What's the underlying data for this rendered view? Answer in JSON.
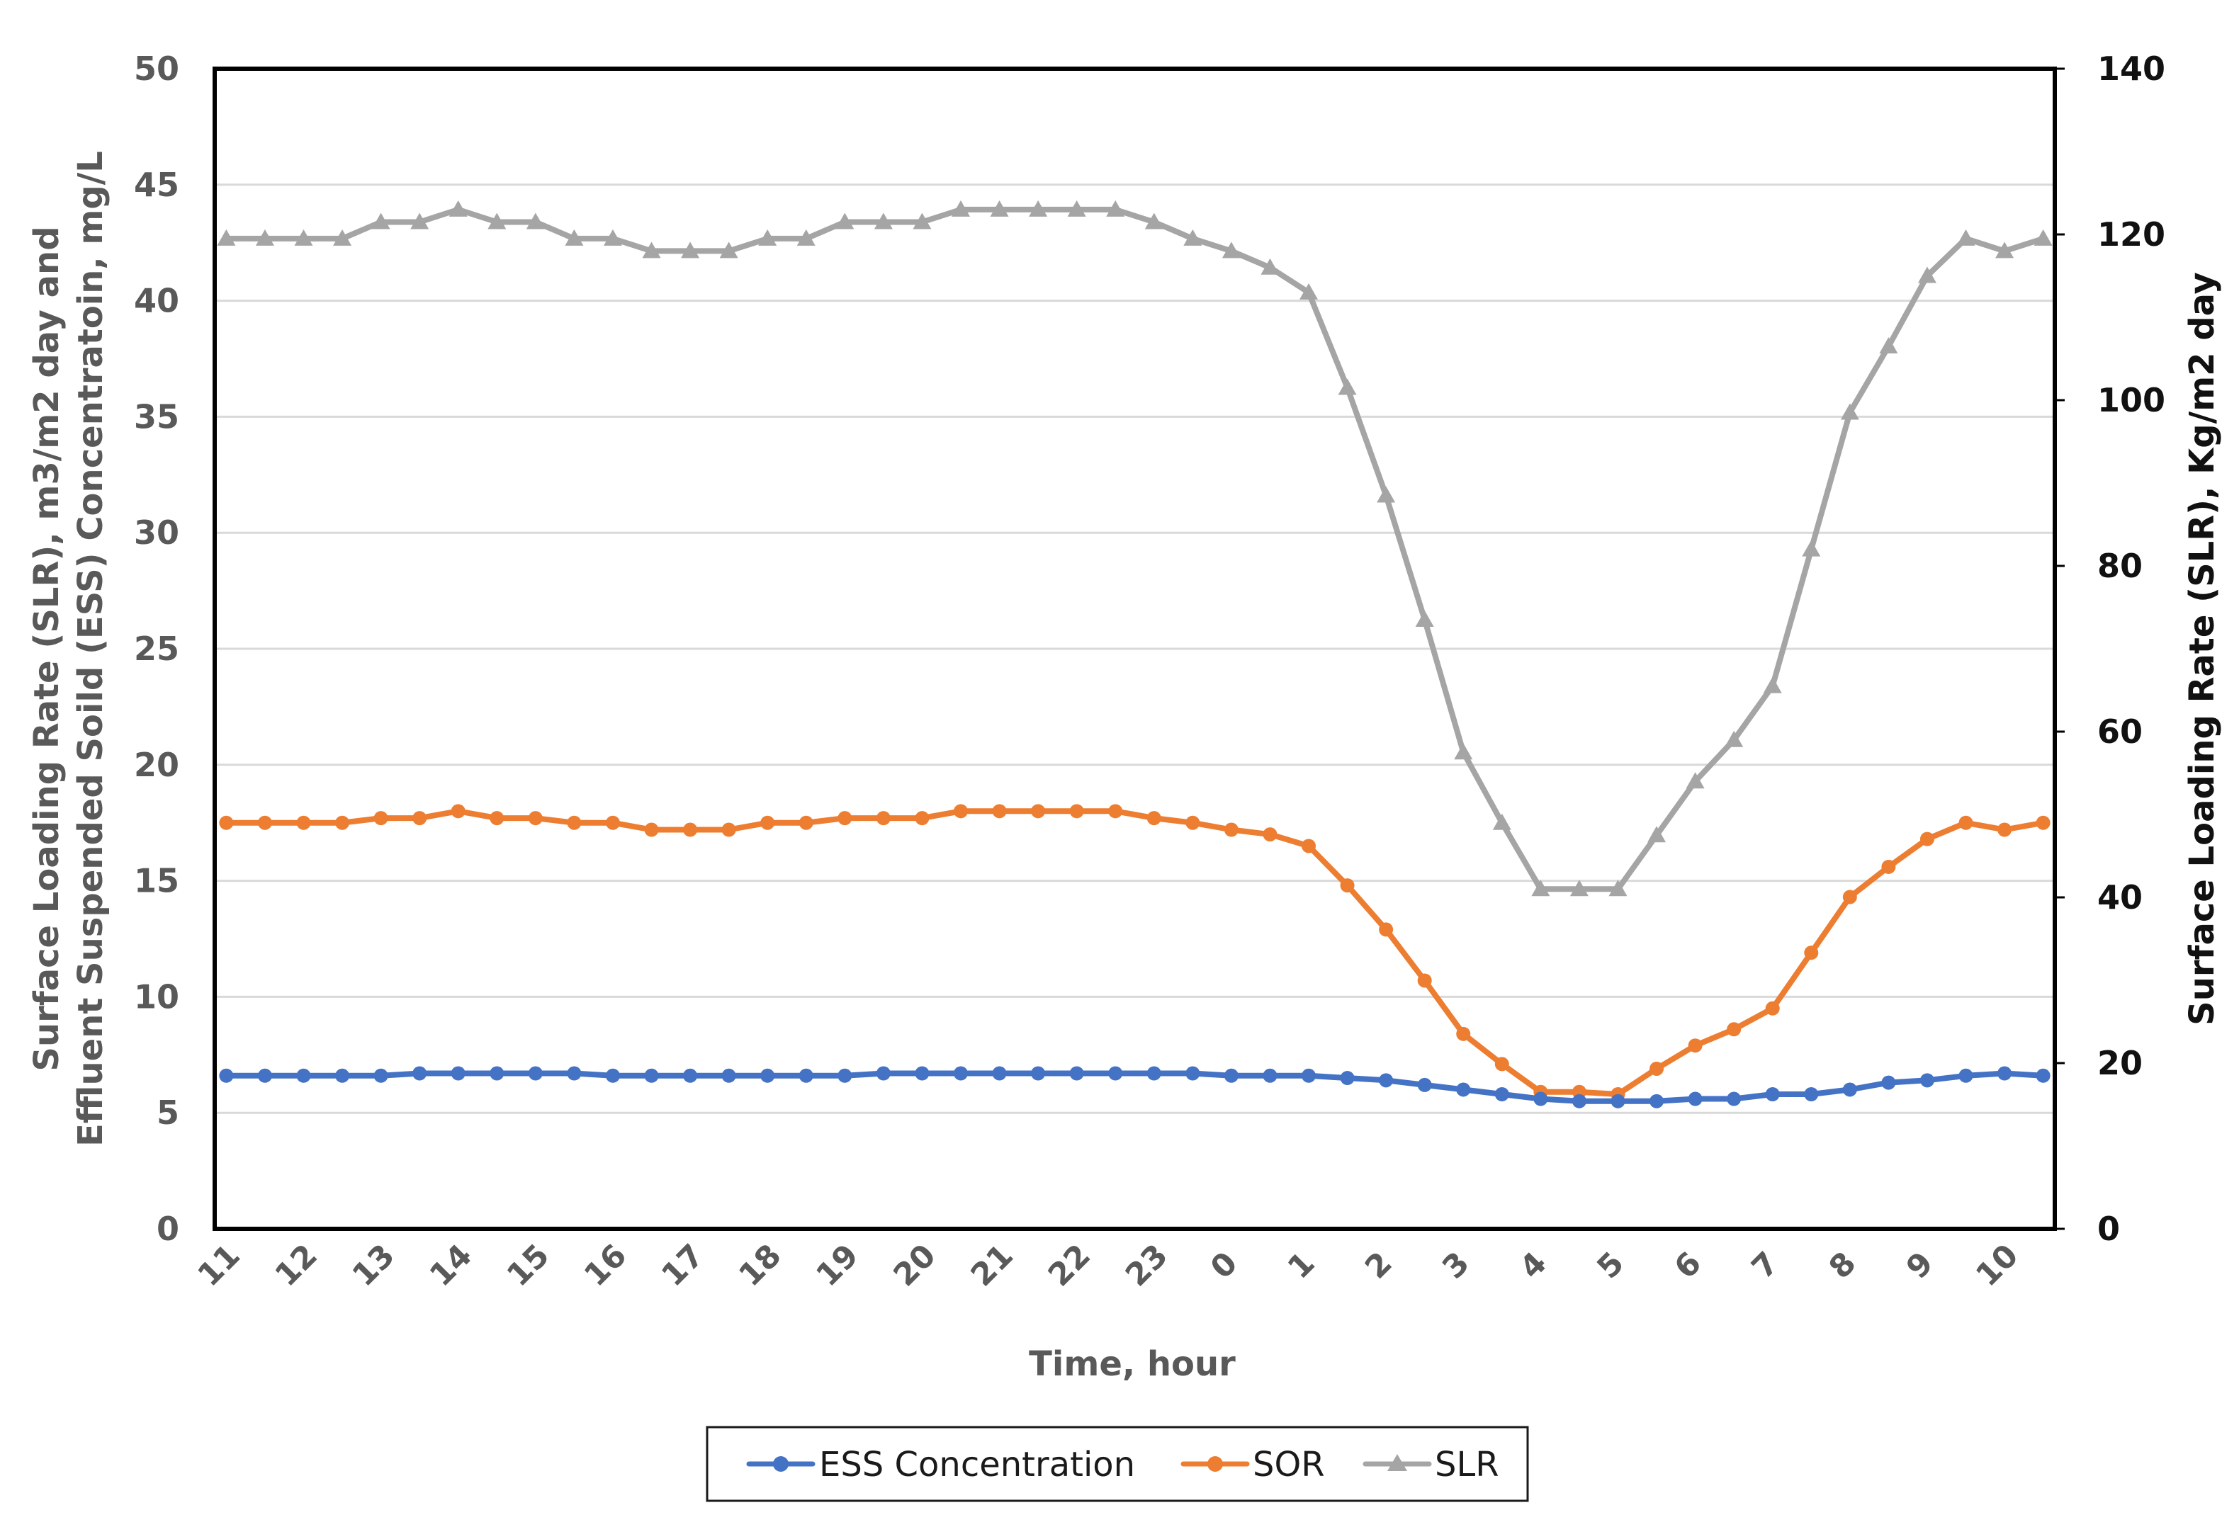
{
  "chart_data": {
    "type": "line",
    "x_tick_labels": [
      "11",
      "12",
      "13",
      "14",
      "15",
      "16",
      "17",
      "18",
      "19",
      "20",
      "21",
      "22",
      "23",
      "0",
      "1",
      "2",
      "3",
      "4",
      "5",
      "6",
      "7",
      "8",
      "9",
      "10"
    ],
    "xlabel": "Time, hour",
    "ylabel_left_line1": "Surface Loading Rate (SLR), m3/m2 day and",
    "ylabel_left_line2": "Effluent Suspended Soild (ESS) Concentratoin, mg/L",
    "ylabel_right": "Surface Loading Rate (SLR), Kg/m2 day",
    "ylim_left": [
      0,
      50
    ],
    "ylim_right": [
      0,
      140
    ],
    "yticks_left": [
      "0",
      "5",
      "10",
      "15",
      "20",
      "25",
      "30",
      "35",
      "40",
      "45",
      "50"
    ],
    "yticks_right": [
      "0",
      "20",
      "40",
      "60",
      "80",
      "100",
      "120",
      "140"
    ],
    "x_range": [
      10.85,
      34.65
    ],
    "x": [
      11,
      11.5,
      12,
      12.5,
      13,
      13.5,
      14,
      14.5,
      15,
      15.5,
      16,
      16.5,
      17,
      17.5,
      18,
      18.5,
      19,
      19.5,
      20,
      20.5,
      21,
      21.5,
      22,
      22.5,
      23,
      23.5,
      24,
      24.5,
      25,
      25.5,
      26,
      26.5,
      27,
      27.5,
      28,
      28.5,
      29,
      29.5,
      30,
      30.5,
      31,
      31.5,
      32,
      32.5,
      33,
      33.5,
      34,
      34.5
    ],
    "grid": true,
    "legend_position": "bottom-center",
    "series": [
      {
        "name": "ESS Concentration",
        "axis": "left",
        "color": "#4472C4",
        "marker": "circle",
        "values": [
          6.6,
          6.6,
          6.6,
          6.6,
          6.6,
          6.7,
          6.7,
          6.7,
          6.7,
          6.7,
          6.6,
          6.6,
          6.6,
          6.6,
          6.6,
          6.6,
          6.6,
          6.7,
          6.7,
          6.7,
          6.7,
          6.7,
          6.7,
          6.7,
          6.7,
          6.7,
          6.6,
          6.6,
          6.6,
          6.5,
          6.4,
          6.2,
          6.0,
          5.8,
          5.6,
          5.5,
          5.5,
          5.5,
          5.6,
          5.6,
          5.8,
          5.8,
          6.0,
          6.3,
          6.4,
          6.6,
          6.7,
          6.6
        ]
      },
      {
        "name": "SOR",
        "axis": "left",
        "color": "#ED7D31",
        "marker": "circle",
        "values": [
          17.5,
          17.5,
          17.5,
          17.5,
          17.7,
          17.7,
          18.0,
          17.7,
          17.7,
          17.5,
          17.5,
          17.2,
          17.2,
          17.2,
          17.5,
          17.5,
          17.7,
          17.7,
          17.7,
          18.0,
          18.0,
          18.0,
          18.0,
          18.0,
          17.7,
          17.5,
          17.2,
          17.0,
          16.5,
          14.8,
          12.9,
          10.7,
          8.4,
          7.1,
          5.9,
          5.9,
          5.8,
          6.9,
          7.9,
          8.6,
          9.5,
          11.9,
          14.3,
          15.6,
          16.8,
          17.5,
          17.2,
          17.5
        ]
      },
      {
        "name": "SLR",
        "axis": "right",
        "color": "#A5A5A5",
        "marker": "triangle",
        "values": [
          119.5,
          119.5,
          119.5,
          119.5,
          121.5,
          121.5,
          123.0,
          121.5,
          121.5,
          119.5,
          119.5,
          118.0,
          118.0,
          118.0,
          119.5,
          119.5,
          121.5,
          121.5,
          121.5,
          123.0,
          123.0,
          123.0,
          123.0,
          123.0,
          121.5,
          119.5,
          118.0,
          116.0,
          113.0,
          101.5,
          88.5,
          73.5,
          57.5,
          49.0,
          41.0,
          41.0,
          41.0,
          47.5,
          54.0,
          59.0,
          65.5,
          82.0,
          98.5,
          106.5,
          115.0,
          119.5,
          118.0,
          119.5
        ]
      }
    ]
  }
}
